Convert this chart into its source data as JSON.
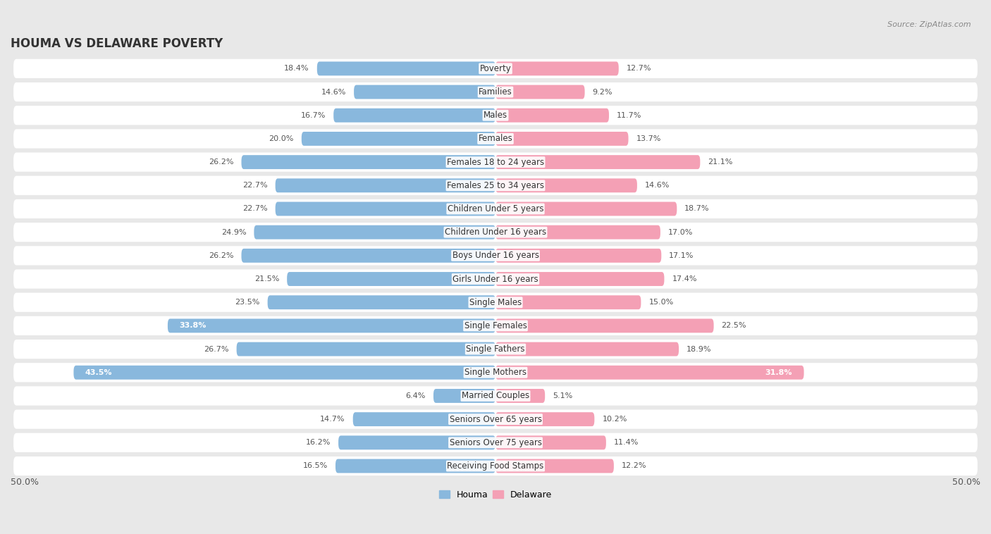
{
  "title": "HOUMA VS DELAWARE POVERTY",
  "source": "Source: ZipAtlas.com",
  "categories": [
    "Poverty",
    "Families",
    "Males",
    "Females",
    "Females 18 to 24 years",
    "Females 25 to 34 years",
    "Children Under 5 years",
    "Children Under 16 years",
    "Boys Under 16 years",
    "Girls Under 16 years",
    "Single Males",
    "Single Females",
    "Single Fathers",
    "Single Mothers",
    "Married Couples",
    "Seniors Over 65 years",
    "Seniors Over 75 years",
    "Receiving Food Stamps"
  ],
  "houma_values": [
    18.4,
    14.6,
    16.7,
    20.0,
    26.2,
    22.7,
    22.7,
    24.9,
    26.2,
    21.5,
    23.5,
    33.8,
    26.7,
    43.5,
    6.4,
    14.7,
    16.2,
    16.5
  ],
  "delaware_values": [
    12.7,
    9.2,
    11.7,
    13.7,
    21.1,
    14.6,
    18.7,
    17.0,
    17.1,
    17.4,
    15.0,
    22.5,
    18.9,
    31.8,
    5.1,
    10.2,
    11.4,
    12.2
  ],
  "houma_color": "#89b8dd",
  "delaware_color": "#f4a0b5",
  "houma_label": "Houma",
  "delaware_label": "Delaware",
  "x_min": -50.0,
  "x_max": 50.0,
  "background_color": "#e8e8e8",
  "row_color": "#ffffff",
  "label_fontsize": 8.5,
  "value_fontsize": 8.0,
  "title_fontsize": 12,
  "source_fontsize": 8
}
